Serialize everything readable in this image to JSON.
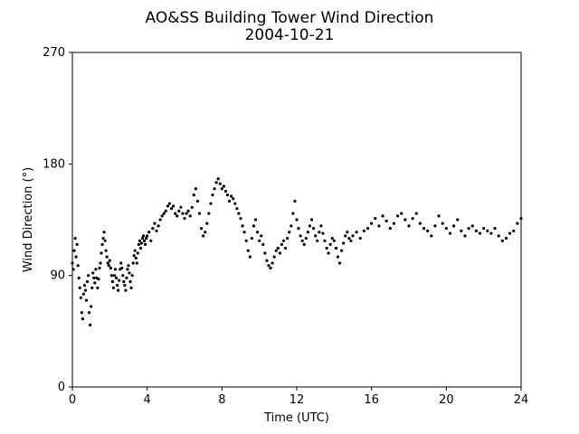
{
  "chart_data": {
    "type": "scatter",
    "title": "AO&SS Building Tower Wind Direction",
    "subtitle": "2004-10-21",
    "xlabel": "Time (UTC)",
    "ylabel": "Wind Direction (°)",
    "xlim": [
      0,
      24
    ],
    "ylim": [
      0,
      270
    ],
    "xticks": [
      0,
      4,
      8,
      12,
      16,
      20,
      24
    ],
    "yticks": [
      0,
      90,
      180,
      270
    ],
    "grid": false,
    "marker_color": "#000000",
    "series": [
      {
        "points": [
          [
            0.0,
            100
          ],
          [
            0.05,
            95
          ],
          [
            0.1,
            110
          ],
          [
            0.15,
            120
          ],
          [
            0.2,
            105
          ],
          [
            0.25,
            115
          ],
          [
            0.3,
            98
          ],
          [
            0.35,
            88
          ],
          [
            0.4,
            80
          ],
          [
            0.45,
            72
          ],
          [
            0.5,
            60
          ],
          [
            0.55,
            55
          ],
          [
            0.6,
            75
          ],
          [
            0.65,
            82
          ],
          [
            0.7,
            78
          ],
          [
            0.75,
            70
          ],
          [
            0.8,
            85
          ],
          [
            0.85,
            90
          ],
          [
            0.9,
            60
          ],
          [
            0.95,
            50
          ],
          [
            1.0,
            65
          ],
          [
            1.05,
            80
          ],
          [
            1.1,
            92
          ],
          [
            1.15,
            88
          ],
          [
            1.2,
            84
          ],
          [
            1.25,
            95
          ],
          [
            1.3,
            88
          ],
          [
            1.35,
            80
          ],
          [
            1.4,
            87
          ],
          [
            1.45,
            96
          ],
          [
            1.5,
            100
          ],
          [
            1.55,
            108
          ],
          [
            1.6,
            115
          ],
          [
            1.65,
            120
          ],
          [
            1.7,
            125
          ],
          [
            1.75,
            118
          ],
          [
            1.8,
            110
          ],
          [
            1.85,
            105
          ],
          [
            1.9,
            100
          ],
          [
            1.95,
            98
          ],
          [
            2.0,
            102
          ],
          [
            2.05,
            96
          ],
          [
            2.1,
            90
          ],
          [
            2.15,
            85
          ],
          [
            2.2,
            80
          ],
          [
            2.25,
            90
          ],
          [
            2.3,
            95
          ],
          [
            2.35,
            88
          ],
          [
            2.4,
            82
          ],
          [
            2.45,
            78
          ],
          [
            2.5,
            86
          ],
          [
            2.55,
            95
          ],
          [
            2.6,
            100
          ],
          [
            2.65,
            96
          ],
          [
            2.7,
            90
          ],
          [
            2.75,
            85
          ],
          [
            2.8,
            82
          ],
          [
            2.85,
            78
          ],
          [
            2.9,
            88
          ],
          [
            2.95,
            95
          ],
          [
            3.0,
            98
          ],
          [
            3.05,
            92
          ],
          [
            3.1,
            85
          ],
          [
            3.15,
            80
          ],
          [
            3.2,
            90
          ],
          [
            3.25,
            100
          ],
          [
            3.3,
            106
          ],
          [
            3.35,
            110
          ],
          [
            3.4,
            104
          ],
          [
            3.45,
            100
          ],
          [
            3.5,
            108
          ],
          [
            3.55,
            115
          ],
          [
            3.6,
            118
          ],
          [
            3.65,
            112
          ],
          [
            3.7,
            116
          ],
          [
            3.75,
            120
          ],
          [
            3.8,
            122
          ],
          [
            3.85,
            118
          ],
          [
            3.9,
            115
          ],
          [
            3.95,
            120
          ],
          [
            4.0,
            122
          ],
          [
            4.1,
            125
          ],
          [
            4.2,
            118
          ],
          [
            4.3,
            128
          ],
          [
            4.4,
            132
          ],
          [
            4.5,
            126
          ],
          [
            4.6,
            130
          ],
          [
            4.7,
            135
          ],
          [
            4.8,
            138
          ],
          [
            4.9,
            140
          ],
          [
            5.0,
            142
          ],
          [
            5.1,
            146
          ],
          [
            5.2,
            148
          ],
          [
            5.3,
            144
          ],
          [
            5.4,
            146
          ],
          [
            5.5,
            140
          ],
          [
            5.6,
            138
          ],
          [
            5.7,
            142
          ],
          [
            5.8,
            145
          ],
          [
            5.9,
            140
          ],
          [
            6.0,
            136
          ],
          [
            6.1,
            140
          ],
          [
            6.2,
            142
          ],
          [
            6.3,
            138
          ],
          [
            6.4,
            145
          ],
          [
            6.5,
            155
          ],
          [
            6.6,
            160
          ],
          [
            6.7,
            150
          ],
          [
            6.8,
            140
          ],
          [
            6.9,
            128
          ],
          [
            7.0,
            122
          ],
          [
            7.1,
            125
          ],
          [
            7.2,
            132
          ],
          [
            7.3,
            140
          ],
          [
            7.4,
            148
          ],
          [
            7.5,
            155
          ],
          [
            7.6,
            160
          ],
          [
            7.7,
            165
          ],
          [
            7.8,
            168
          ],
          [
            7.9,
            164
          ],
          [
            8.0,
            160
          ],
          [
            8.1,
            162
          ],
          [
            8.2,
            158
          ],
          [
            8.3,
            155
          ],
          [
            8.4,
            150
          ],
          [
            8.5,
            154
          ],
          [
            8.6,
            152
          ],
          [
            8.7,
            148
          ],
          [
            8.8,
            144
          ],
          [
            8.9,
            140
          ],
          [
            9.0,
            136
          ],
          [
            9.1,
            130
          ],
          [
            9.2,
            125
          ],
          [
            9.3,
            118
          ],
          [
            9.4,
            110
          ],
          [
            9.5,
            105
          ],
          [
            9.6,
            120
          ],
          [
            9.7,
            130
          ],
          [
            9.8,
            135
          ],
          [
            9.9,
            125
          ],
          [
            10.0,
            118
          ],
          [
            10.1,
            122
          ],
          [
            10.2,
            115
          ],
          [
            10.3,
            108
          ],
          [
            10.4,
            102
          ],
          [
            10.5,
            98
          ],
          [
            10.6,
            96
          ],
          [
            10.7,
            100
          ],
          [
            10.8,
            105
          ],
          [
            10.9,
            110
          ],
          [
            11.0,
            112
          ],
          [
            11.1,
            108
          ],
          [
            11.2,
            115
          ],
          [
            11.3,
            118
          ],
          [
            11.4,
            112
          ],
          [
            11.5,
            120
          ],
          [
            11.6,
            125
          ],
          [
            11.7,
            130
          ],
          [
            11.8,
            140
          ],
          [
            11.9,
            150
          ],
          [
            12.0,
            135
          ],
          [
            12.1,
            128
          ],
          [
            12.2,
            122
          ],
          [
            12.3,
            118
          ],
          [
            12.4,
            115
          ],
          [
            12.5,
            120
          ],
          [
            12.6,
            125
          ],
          [
            12.7,
            130
          ],
          [
            12.8,
            135
          ],
          [
            12.9,
            128
          ],
          [
            13.0,
            122
          ],
          [
            13.1,
            118
          ],
          [
            13.2,
            125
          ],
          [
            13.3,
            130
          ],
          [
            13.4,
            124
          ],
          [
            13.5,
            118
          ],
          [
            13.6,
            112
          ],
          [
            13.7,
            108
          ],
          [
            13.8,
            115
          ],
          [
            13.9,
            120
          ],
          [
            14.0,
            118
          ],
          [
            14.1,
            112
          ],
          [
            14.2,
            105
          ],
          [
            14.3,
            100
          ],
          [
            14.4,
            110
          ],
          [
            14.5,
            116
          ],
          [
            14.6,
            122
          ],
          [
            14.7,
            125
          ],
          [
            14.8,
            120
          ],
          [
            14.9,
            118
          ],
          [
            15.0,
            122
          ],
          [
            15.2,
            125
          ],
          [
            15.4,
            120
          ],
          [
            15.6,
            126
          ],
          [
            15.8,
            128
          ],
          [
            16.0,
            132
          ],
          [
            16.2,
            136
          ],
          [
            16.4,
            130
          ],
          [
            16.6,
            138
          ],
          [
            16.8,
            134
          ],
          [
            17.0,
            128
          ],
          [
            17.2,
            132
          ],
          [
            17.4,
            138
          ],
          [
            17.6,
            140
          ],
          [
            17.8,
            135
          ],
          [
            18.0,
            130
          ],
          [
            18.2,
            136
          ],
          [
            18.4,
            140
          ],
          [
            18.6,
            132
          ],
          [
            18.8,
            128
          ],
          [
            19.0,
            126
          ],
          [
            19.2,
            122
          ],
          [
            19.4,
            130
          ],
          [
            19.6,
            138
          ],
          [
            19.8,
            132
          ],
          [
            20.0,
            128
          ],
          [
            20.2,
            124
          ],
          [
            20.4,
            130
          ],
          [
            20.6,
            135
          ],
          [
            20.8,
            126
          ],
          [
            21.0,
            122
          ],
          [
            21.2,
            128
          ],
          [
            21.4,
            130
          ],
          [
            21.6,
            126
          ],
          [
            21.8,
            124
          ],
          [
            22.0,
            128
          ],
          [
            22.2,
            126
          ],
          [
            22.4,
            124
          ],
          [
            22.6,
            128
          ],
          [
            22.8,
            122
          ],
          [
            23.0,
            118
          ],
          [
            23.2,
            120
          ],
          [
            23.4,
            124
          ],
          [
            23.6,
            126
          ],
          [
            23.8,
            132
          ],
          [
            24.0,
            136
          ]
        ]
      }
    ]
  }
}
